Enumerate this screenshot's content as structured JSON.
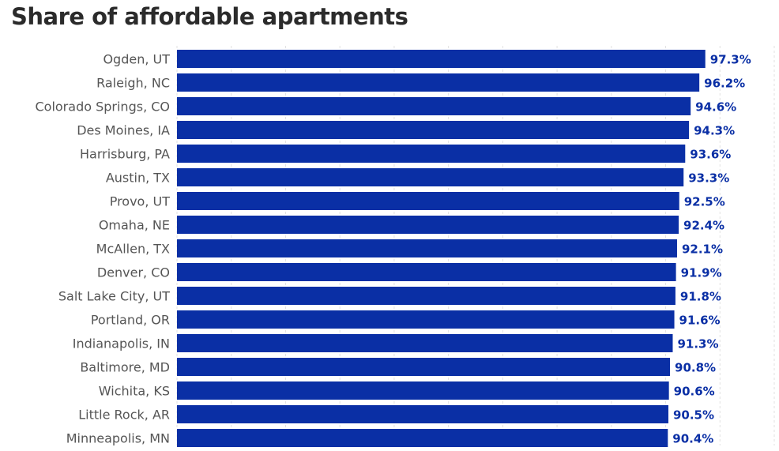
{
  "title": "Share of affordable apartments",
  "colors": {
    "bar": "#0a2fa5",
    "value_label": "#0a2fa5",
    "grid": "#e2e2e2",
    "category_label": "#555555"
  },
  "chart_data": {
    "type": "bar",
    "orientation": "horizontal",
    "title": "Share of affordable apartments",
    "xlabel": "",
    "ylabel": "",
    "grid": true,
    "categories": [
      "Ogden, UT",
      "Raleigh, NC",
      "Colorado Springs, CO",
      "Des Moines, IA",
      "Harrisburg, PA",
      "Austin, TX",
      "Provo, UT",
      "Omaha, NE",
      "McAllen, TX",
      "Denver, CO",
      "Salt Lake City, UT",
      "Portland, OR",
      "Indianapolis, IN",
      "Baltimore, MD",
      "Wichita, KS",
      "Little Rock, AR",
      "Minneapolis, MN"
    ],
    "values": [
      97.3,
      96.2,
      94.6,
      94.3,
      93.6,
      93.3,
      92.5,
      92.4,
      92.1,
      91.9,
      91.8,
      91.6,
      91.3,
      90.8,
      90.6,
      90.5,
      90.4
    ],
    "value_labels": [
      "97.3%",
      "96.2%",
      "94.6%",
      "94.3%",
      "93.6%",
      "93.3%",
      "92.5%",
      "92.4%",
      "92.1%",
      "91.9%",
      "91.8%",
      "91.6%",
      "91.3%",
      "90.8%",
      "90.6%",
      "90.5%",
      "90.4%"
    ],
    "xlim": [
      0,
      110
    ]
  }
}
